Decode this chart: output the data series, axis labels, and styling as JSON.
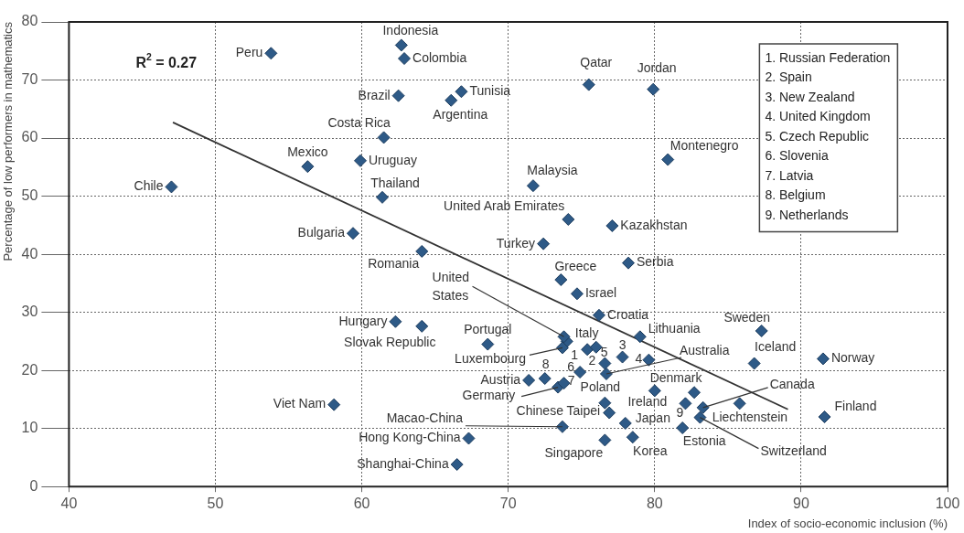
{
  "chart_data": {
    "type": "scatter",
    "xlabel": "Index of socio-economic inclusion (%)",
    "ylabel": "Percentage of low performers in mathematics",
    "xlim": [
      40,
      100
    ],
    "xticks": [
      40,
      50,
      60,
      70,
      80,
      90,
      100
    ],
    "ylim": [
      0,
      80
    ],
    "yticks": [
      0,
      10,
      20,
      30,
      40,
      50,
      60,
      70,
      80
    ],
    "grid": true,
    "legend": false,
    "annotations": [
      "R$^{2}$ = 0.27",
      "1. Russian Federation",
      "2. Spain",
      "3. New Zealand",
      "4. United Kingdom",
      "5. Czech Republic",
      "6. Slovenia",
      "7. Latvia",
      "8. Belgium",
      "9. Netherlands",
      {
        "text": "Peru",
        "x": 53.8,
        "y": 74.6
      },
      {
        "text": "Indonesia",
        "x": 62.7,
        "y": 76.0
      },
      {
        "text": "Colombia",
        "x": 62.9,
        "y": 73.7
      },
      {
        "text": "Brazil",
        "x": 62.5,
        "y": 67.3
      },
      {
        "text": "Argentina",
        "x": 66.1,
        "y": 66.5
      },
      {
        "text": "Tunisia",
        "x": 66.8,
        "y": 68.0
      },
      {
        "text": "Costa Rica",
        "x": 61.5,
        "y": 60.1
      },
      {
        "text": "Mexico",
        "x": 56.3,
        "y": 55.1
      },
      {
        "text": "Uruguay",
        "x": 59.9,
        "y": 56.1
      },
      {
        "text": "Chile",
        "x": 47.0,
        "y": 51.6
      },
      {
        "text": "Thailand",
        "x": 61.4,
        "y": 49.8
      },
      {
        "text": "Bulgaria",
        "x": 59.4,
        "y": 43.6
      },
      {
        "text": "Romania",
        "x": 64.1,
        "y": 40.5
      },
      {
        "text": "Hungary",
        "x": 62.3,
        "y": 28.4
      },
      {
        "text": "Slovak Republic",
        "x": 64.1,
        "y": 27.6
      },
      {
        "text": "Qatar",
        "x": 75.5,
        "y": 69.2
      },
      {
        "text": "Jordan",
        "x": 79.9,
        "y": 68.4
      },
      {
        "text": "Montenegro",
        "x": 80.9,
        "y": 56.3
      },
      {
        "text": "Malaysia",
        "x": 71.7,
        "y": 51.8
      },
      {
        "text": "United Arab Emirates",
        "x": 74.1,
        "y": 46.0
      },
      {
        "text": "Kazakhstan",
        "x": 77.1,
        "y": 44.9
      },
      {
        "text": "Turkey",
        "x": 72.4,
        "y": 41.8
      },
      {
        "text": "Serbia",
        "x": 78.2,
        "y": 38.5
      },
      {
        "text": "Greece",
        "x": 73.6,
        "y": 35.6
      },
      {
        "text": "Israel",
        "x": 74.7,
        "y": 33.2
      },
      {
        "text": "Croatia",
        "x": 76.2,
        "y": 29.5
      },
      {
        "text": "Sweden",
        "x": 87.3,
        "y": 26.8
      },
      {
        "text": "Lithuania",
        "x": 79.0,
        "y": 25.8
      },
      {
        "text": "Italy",
        "x": 74.0,
        "y": 25.0
      },
      {
        "text": "United States",
        "x": 73.8,
        "y": 25.8
      },
      {
        "text": "Portugal",
        "x": 68.6,
        "y": 24.5
      },
      {
        "text": "Luxembourg",
        "x": 73.7,
        "y": 23.9
      },
      {
        "text": "1",
        "x": 75.4,
        "y": 23.6
      },
      {
        "text": "2",
        "x": 76.6,
        "y": 21.2
      },
      {
        "text": "5",
        "x": 76.0,
        "y": 24.0
      },
      {
        "text": "3",
        "x": 77.8,
        "y": 22.3
      },
      {
        "text": "4",
        "x": 79.6,
        "y": 21.8
      },
      {
        "text": "Australia",
        "x": 76.7,
        "y": 19.4
      },
      {
        "text": "6",
        "x": 74.9,
        "y": 19.7
      },
      {
        "text": "8",
        "x": 72.5,
        "y": 18.6
      },
      {
        "text": "Austria",
        "x": 71.4,
        "y": 18.3
      },
      {
        "text": "Germany",
        "x": 73.4,
        "y": 17.1
      },
      {
        "text": "7",
        "x": 73.8,
        "y": 17.8
      },
      {
        "text": "Poland",
        "x": 76.6,
        "y": 14.4
      },
      {
        "text": "Chinese Taipei",
        "x": 76.9,
        "y": 12.7
      },
      {
        "text": "Ireland",
        "x": 80.0,
        "y": 16.5
      },
      {
        "text": "Denmark",
        "x": 82.7,
        "y": 16.2
      },
      {
        "text": "9",
        "x": 82.1,
        "y": 14.3
      },
      {
        "text": "Canada",
        "x": 83.3,
        "y": 13.6
      },
      {
        "text": "Switzerland",
        "x": 83.1,
        "y": 11.9
      },
      {
        "text": "Liechtenstein",
        "x": 85.8,
        "y": 14.3
      },
      {
        "text": "Finland",
        "x": 91.6,
        "y": 12.0
      },
      {
        "text": "Iceland",
        "x": 86.8,
        "y": 21.2
      },
      {
        "text": "Norway",
        "x": 91.5,
        "y": 22.0
      },
      {
        "text": "Estonia",
        "x": 81.9,
        "y": 10.1
      },
      {
        "text": "Japan",
        "x": 78.0,
        "y": 10.9
      },
      {
        "text": "Korea",
        "x": 78.5,
        "y": 8.5
      },
      {
        "text": "Singapore",
        "x": 76.6,
        "y": 8.0
      },
      {
        "text": "Macao-China",
        "x": 73.7,
        "y": 10.3
      },
      {
        "text": "Hong Kong-China",
        "x": 67.3,
        "y": 8.3
      },
      {
        "text": "Shanghai-China",
        "x": 66.5,
        "y": 3.8
      },
      {
        "text": "Viet Nam",
        "x": 58.1,
        "y": 14.1
      }
    ],
    "series": [
      {
        "color": "#2e5a87",
        "marker": "diamond",
        "x": [
          53.8,
          62.7,
          62.9,
          62.5,
          66.1,
          66.8,
          61.5,
          56.3,
          59.9,
          47.0,
          61.4,
          59.4,
          64.1,
          62.3,
          64.1,
          75.5,
          79.9,
          80.9,
          71.7,
          74.1,
          77.1,
          72.4,
          78.2,
          73.6,
          74.7,
          76.2,
          87.3,
          79.0,
          74.0,
          73.8,
          68.6,
          73.7,
          75.4,
          76.6,
          76.0,
          77.8,
          79.6,
          76.7,
          74.9,
          72.5,
          71.4,
          73.4,
          73.8,
          76.6,
          76.9,
          80.0,
          82.7,
          82.1,
          83.3,
          83.1,
          85.8,
          91.6,
          86.8,
          91.5,
          81.9,
          78.0,
          78.5,
          76.6,
          73.7,
          67.3,
          66.5,
          58.1
        ],
        "values": [
          74.6,
          76.0,
          73.7,
          67.3,
          66.5,
          68.0,
          60.1,
          55.1,
          56.1,
          51.6,
          49.8,
          43.6,
          40.5,
          28.4,
          27.6,
          69.2,
          68.4,
          56.3,
          51.8,
          46.0,
          44.9,
          41.8,
          38.5,
          35.6,
          33.2,
          29.5,
          26.8,
          25.8,
          25.0,
          25.8,
          24.5,
          23.9,
          23.6,
          21.2,
          24.0,
          22.3,
          21.8,
          19.4,
          19.7,
          18.6,
          18.3,
          17.1,
          17.8,
          14.4,
          12.7,
          16.5,
          16.2,
          14.3,
          13.6,
          11.9,
          14.3,
          12.0,
          21.2,
          22.0,
          10.1,
          10.9,
          8.5,
          8.0,
          10.3,
          8.3,
          3.8,
          14.1
        ]
      },
      {
        "type": "line",
        "color": "#333333",
        "marker": "none",
        "x": [
          47.1,
          89.1
        ],
        "values": [
          62.7,
          13.3
        ]
      }
    ]
  }
}
